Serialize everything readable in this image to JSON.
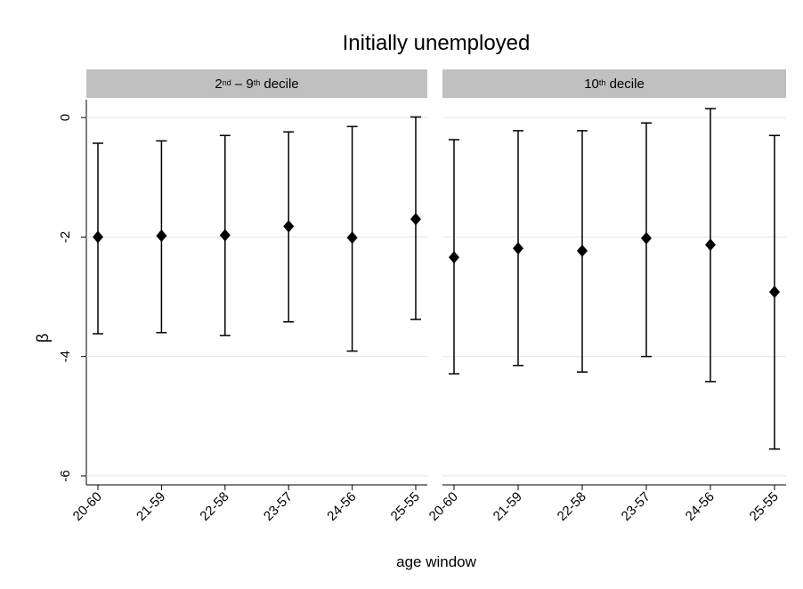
{
  "chart_data": {
    "type": "errorbar",
    "title": "Initially unemployed",
    "xlabel": "age window",
    "ylabel": "β",
    "categories": [
      "20-60",
      "21-59",
      "22-58",
      "23-57",
      "24-56",
      "25-55"
    ],
    "ylim": [
      -6.15,
      0.3
    ],
    "yticks": [
      -6,
      -4,
      -2,
      0
    ],
    "grid": true,
    "color": "#000000",
    "panels": [
      {
        "label_parts": [
          "2",
          "nd",
          " – 9",
          "th",
          " decile"
        ],
        "values": [
          -2.0,
          -1.98,
          -1.97,
          -1.82,
          -2.01,
          -1.7
        ],
        "lower": [
          -3.62,
          -3.6,
          -3.65,
          -3.42,
          -3.91,
          -3.38
        ],
        "upper": [
          -0.43,
          -0.39,
          -0.3,
          -0.24,
          -0.15,
          0.01
        ]
      },
      {
        "label_parts": [
          "10",
          "th",
          " decile"
        ],
        "values": [
          -2.34,
          -2.19,
          -2.23,
          -2.02,
          -2.13,
          -2.92
        ],
        "lower": [
          -4.29,
          -4.15,
          -4.26,
          -4.0,
          -4.42,
          -5.55
        ],
        "upper": [
          -0.37,
          -0.22,
          -0.22,
          -0.09,
          0.15,
          -0.3
        ]
      }
    ]
  }
}
